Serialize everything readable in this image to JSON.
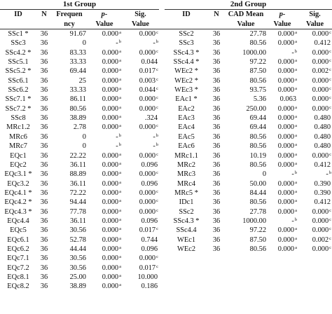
{
  "groups": {
    "left": "1st Group",
    "right": "2nd Group"
  },
  "headers_left": {
    "id": "ID",
    "n": "N",
    "freq_1": "Frequen",
    "freq_2": "ncy",
    "p_1": "p-",
    "p_2": "Value",
    "sig_1": "Sig.",
    "sig_2": "Value"
  },
  "headers_right": {
    "id": "ID",
    "n": "N",
    "cad_1": "CAD Mean",
    "cad_2": "Value",
    "p_1": "p-",
    "p_2": "Value",
    "sig_1": "Sig.",
    "sig_2": "Value"
  },
  "left_rows": [
    {
      "id": "SSc1 *",
      "n": "36",
      "f": "91.67",
      "p": "0.000",
      "ps": "a",
      "s": "0.000",
      "ss": "c"
    },
    {
      "id": "SSc3",
      "n": "36",
      "f": "0",
      "p": "-",
      "ps": "b",
      "s": "-",
      "ss": "b"
    },
    {
      "id": "SSc4.2 *",
      "n": "36",
      "f": "83.33",
      "p": "0.000",
      "ps": "a",
      "s": "0.000",
      "ss": "c"
    },
    {
      "id": "SSc5.1",
      "n": "36",
      "f": "33.33",
      "p": "0.000",
      "ps": "a",
      "s": "0.044",
      "ss": ""
    },
    {
      "id": "SSc5.2 *",
      "n": "36",
      "f": "69.44",
      "p": "0.000",
      "ps": "a",
      "s": "0.017",
      "ss": "c"
    },
    {
      "id": "SSc6.1",
      "n": "36",
      "f": "25",
      "p": "0.000",
      "ps": "a",
      "s": "0.003",
      "ss": "c"
    },
    {
      "id": "SSc6.2",
      "n": "36",
      "f": "33.33",
      "p": "0.000",
      "ps": "a",
      "s": "0.044",
      "ss": "c"
    },
    {
      "id": "SSc7.1 *",
      "n": "36",
      "f": "86.11",
      "p": "0.000",
      "ps": "a",
      "s": "0.000",
      "ss": "c"
    },
    {
      "id": "SSc7.2 *",
      "n": "36",
      "f": "80.56",
      "p": "0.000",
      "ps": "a",
      "s": "0.000",
      "ss": "c"
    },
    {
      "id": "SSc8",
      "n": "36",
      "f": "38.89",
      "p": "0.000",
      "ps": "a",
      "s": ".324",
      "ss": ""
    },
    {
      "id": "MRc1.2",
      "n": "36",
      "f": "2.78",
      "p": "0.000",
      "ps": "a",
      "s": "0.000",
      "ss": "c"
    },
    {
      "id": "MRc6",
      "n": "36",
      "f": "0",
      "p": "-",
      "ps": "b",
      "s": "-",
      "ss": "b"
    },
    {
      "id": "MRc7",
      "n": "36",
      "f": "0",
      "p": "-",
      "ps": "b",
      "s": "-",
      "ss": "b"
    },
    {
      "id": "EQc1",
      "n": "36",
      "f": "22.22",
      "p": "0.000",
      "ps": "a",
      "s": "0.000",
      "ss": "c"
    },
    {
      "id": "EQc2",
      "n": "36",
      "f": "36.11",
      "p": "0.000",
      "ps": "a",
      "s": "0.096",
      "ss": ""
    },
    {
      "id": "EQc3.1 *",
      "n": "36",
      "f": "88.89",
      "p": "0.000",
      "ps": "a",
      "s": "0.000",
      "ss": "c"
    },
    {
      "id": "EQc3.2",
      "n": "36",
      "f": "36.11",
      "p": "0.000",
      "ps": "a",
      "s": "0.096",
      "ss": ""
    },
    {
      "id": "EQc4.1 *",
      "n": "36",
      "f": "72.22",
      "p": "0.000",
      "ps": "a",
      "s": "0.000",
      "ss": "c"
    },
    {
      "id": "EQc4.2 *",
      "n": "36",
      "f": "94.44",
      "p": "0.000",
      "ps": "a",
      "s": "0.000",
      "ss": "c"
    },
    {
      "id": "EQc4.3 *",
      "n": "36",
      "f": "77.78",
      "p": "0.000",
      "ps": "a",
      "s": "0.000",
      "ss": "c"
    },
    {
      "id": "EQc4.4",
      "n": "36",
      "f": "36.11",
      "p": "0.000",
      "ps": "a",
      "s": "0.096",
      "ss": ""
    },
    {
      "id": "EQc5",
      "n": "36",
      "f": "30.56",
      "p": "0.000",
      "ps": "a",
      "s": "0.017",
      "ss": "c"
    },
    {
      "id": "EQc6.1",
      "n": "36",
      "f": "52.78",
      "p": "0.000",
      "ps": "a",
      "s": "0.744",
      "ss": ""
    },
    {
      "id": "EQc6.2",
      "n": "36",
      "f": "44.44",
      "p": "0.000",
      "ps": "a",
      "s": "0.096",
      "ss": ""
    },
    {
      "id": "EQc7.1",
      "n": "36",
      "f": "30.56",
      "p": "0.000",
      "ps": "a",
      "s": "0.000",
      "ss": "c"
    },
    {
      "id": "EQc7.2",
      "n": "36",
      "f": "30.56",
      "p": "0.000",
      "ps": "a",
      "s": "0.017",
      "ss": "c"
    },
    {
      "id": "EQc8.1",
      "n": "36",
      "f": "25.00",
      "p": "0.000",
      "ps": "a",
      "s": "10.000",
      "ss": ""
    },
    {
      "id": "EQc8.2",
      "n": "36",
      "f": "38.89",
      "p": "0.000",
      "ps": "a",
      "s": "0.186",
      "ss": ""
    }
  ],
  "right_rows": [
    {
      "id": "SSc2",
      "n": "36",
      "c": "27.78",
      "p": "0.000",
      "ps": "a",
      "s": "0.000",
      "ss": "c"
    },
    {
      "id": "SSc3",
      "n": "36",
      "c": "80.56",
      "p": "0.000",
      "ps": "a",
      "s": "0.412",
      "ss": ""
    },
    {
      "id": "SSc4.3 *",
      "n": "36",
      "c": "1000.00",
      "p": "-",
      "ps": "b",
      "s": "0.000",
      "ss": "c"
    },
    {
      "id": "SSc4.4 *",
      "n": "36",
      "c": "97.22",
      "p": "0.000",
      "ps": "a",
      "s": "0.000",
      "ss": "c"
    },
    {
      "id": "WEc2 *",
      "n": "36",
      "c": "87.50",
      "p": "0.000",
      "ps": "a",
      "s": "0.002",
      "ss": "c"
    },
    {
      "id": "WEc2 *",
      "n": "36",
      "c": "80.56",
      "p": "0.000",
      "ps": "a",
      "s": "0.000",
      "ss": "c"
    },
    {
      "id": "WEc3 *",
      "n": "36",
      "c": "93.75",
      "p": "0.000",
      "ps": "a",
      "s": "0.000",
      "ss": "c"
    },
    {
      "id": "EAc1 *",
      "n": "36",
      "c": "5.36",
      "p": "0.063",
      "ps": "",
      "s": "0.000",
      "ss": "c"
    },
    {
      "id": "EAc2",
      "n": "36",
      "c": "250.00",
      "p": "0.000",
      "ps": "a",
      "s": "0.000",
      "ss": "c"
    },
    {
      "id": "EAc3",
      "n": "36",
      "c": "69.44",
      "p": "0.000",
      "ps": "a",
      "s": "0.480",
      "ss": ""
    },
    {
      "id": "EAc4",
      "n": "36",
      "c": "69.44",
      "p": "0.000",
      "ps": "a",
      "s": "0.480",
      "ss": ""
    },
    {
      "id": "EAc5",
      "n": "36",
      "c": "80.56",
      "p": "0.000",
      "ps": "a",
      "s": "0.480",
      "ss": ""
    },
    {
      "id": "EAc6",
      "n": "36",
      "c": "80.56",
      "p": "0.000",
      "ps": "a",
      "s": "0.480",
      "ss": ""
    },
    {
      "id": "MRc1.1",
      "n": "36",
      "c": "10.19",
      "p": "0.000",
      "ps": "a",
      "s": "0.000",
      "ss": "c"
    },
    {
      "id": "MRc2",
      "n": "36",
      "c": "80.56",
      "p": "0.000",
      "ps": "a",
      "s": "0.412",
      "ss": ""
    },
    {
      "id": "MRc3",
      "n": "36",
      "c": "0",
      "p": "-",
      "ps": "b",
      "s": "-",
      "ss": "b"
    },
    {
      "id": "MRc4",
      "n": "36",
      "c": "50.00",
      "p": "0.000",
      "ps": "a",
      "s": "0.390",
      "ss": ""
    },
    {
      "id": "MRc5 *",
      "n": "36",
      "c": "84.44",
      "p": "0.000",
      "ps": "a",
      "s": "0.390",
      "ss": ""
    },
    {
      "id": "IDc1",
      "n": "36",
      "c": "80.56",
      "p": "0.000",
      "ps": "a",
      "s": "0.412",
      "ss": ""
    },
    {
      "id": "SSc2",
      "n": "36",
      "c": "27.78",
      "p": "0.000",
      "ps": "a",
      "s": "0.000",
      "ss": "c"
    },
    {
      "id": "SSc4.3 *",
      "n": "36",
      "c": "1000.00",
      "p": "-",
      "ps": "b",
      "s": "0.000",
      "ss": "c"
    },
    {
      "id": "SSc4.4",
      "n": "36",
      "c": "97.22",
      "p": "0.000",
      "ps": "a",
      "s": "0.000",
      "ss": "c"
    },
    {
      "id": "WEc1",
      "n": "36",
      "c": "87.50",
      "p": "0.000",
      "ps": "a",
      "s": "0.002",
      "ss": "c"
    },
    {
      "id": "WEc2",
      "n": "36",
      "c": "80.56",
      "p": "0.000",
      "ps": "a",
      "s": "0.000",
      "ss": "c"
    }
  ]
}
